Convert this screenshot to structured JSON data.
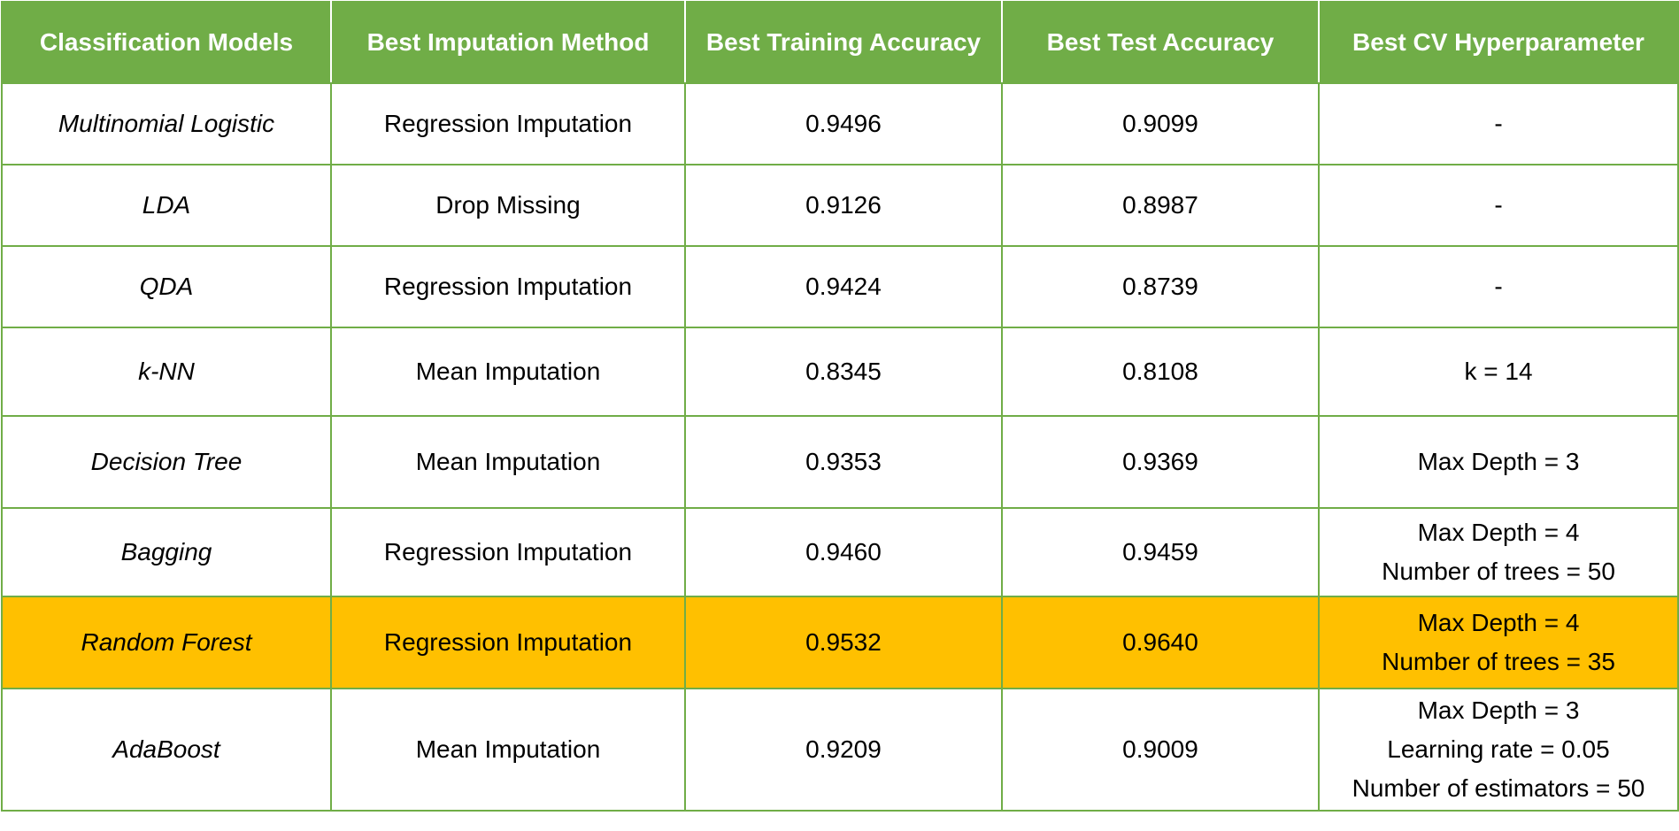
{
  "table": {
    "headers": [
      "Classification Models",
      "Best Imputation Method",
      "Best Training Accuracy",
      "Best Test Accuracy",
      "Best CV Hyperparameter"
    ],
    "rows": [
      {
        "model": "Multinomial Logistic",
        "imputation": "Regression Imputation",
        "train_acc": "0.9496",
        "test_acc": "0.9099",
        "hyper": [
          "-"
        ]
      },
      {
        "model": "LDA",
        "imputation": "Drop Missing",
        "train_acc": "0.9126",
        "test_acc": "0.8987",
        "hyper": [
          "-"
        ]
      },
      {
        "model": "QDA",
        "imputation": "Regression Imputation",
        "train_acc": "0.9424",
        "test_acc": "0.8739",
        "hyper": [
          "-"
        ]
      },
      {
        "model": "k-NN",
        "imputation": "Mean Imputation",
        "train_acc": "0.8345",
        "test_acc": "0.8108",
        "hyper": [
          "k = 14"
        ]
      },
      {
        "model": "Decision Tree",
        "imputation": "Mean Imputation",
        "train_acc": "0.9353",
        "test_acc": "0.9369",
        "hyper": [
          "Max Depth  = 3"
        ]
      },
      {
        "model": "Bagging",
        "imputation": "Regression Imputation",
        "train_acc": "0.9460",
        "test_acc": "0.9459",
        "hyper": [
          "Max Depth  = 4",
          "Number of trees = 50"
        ]
      },
      {
        "model": "Random Forest",
        "imputation": "Regression Imputation",
        "train_acc": "0.9532",
        "test_acc": "0.9640",
        "hyper": [
          "Max Depth  = 4",
          "Number of trees = 35"
        ]
      },
      {
        "model": "AdaBoost",
        "imputation": "Mean Imputation",
        "train_acc": "0.9209",
        "test_acc": "0.9009",
        "hyper": [
          "Max Depth  = 3",
          "Learning rate = 0.05",
          "Number of estimators = 50"
        ]
      }
    ]
  },
  "colors": {
    "header_bg": "#70ad47",
    "header_text": "#ffffff",
    "border": "#70ad47",
    "highlight_row_bg": "#ffc000"
  }
}
